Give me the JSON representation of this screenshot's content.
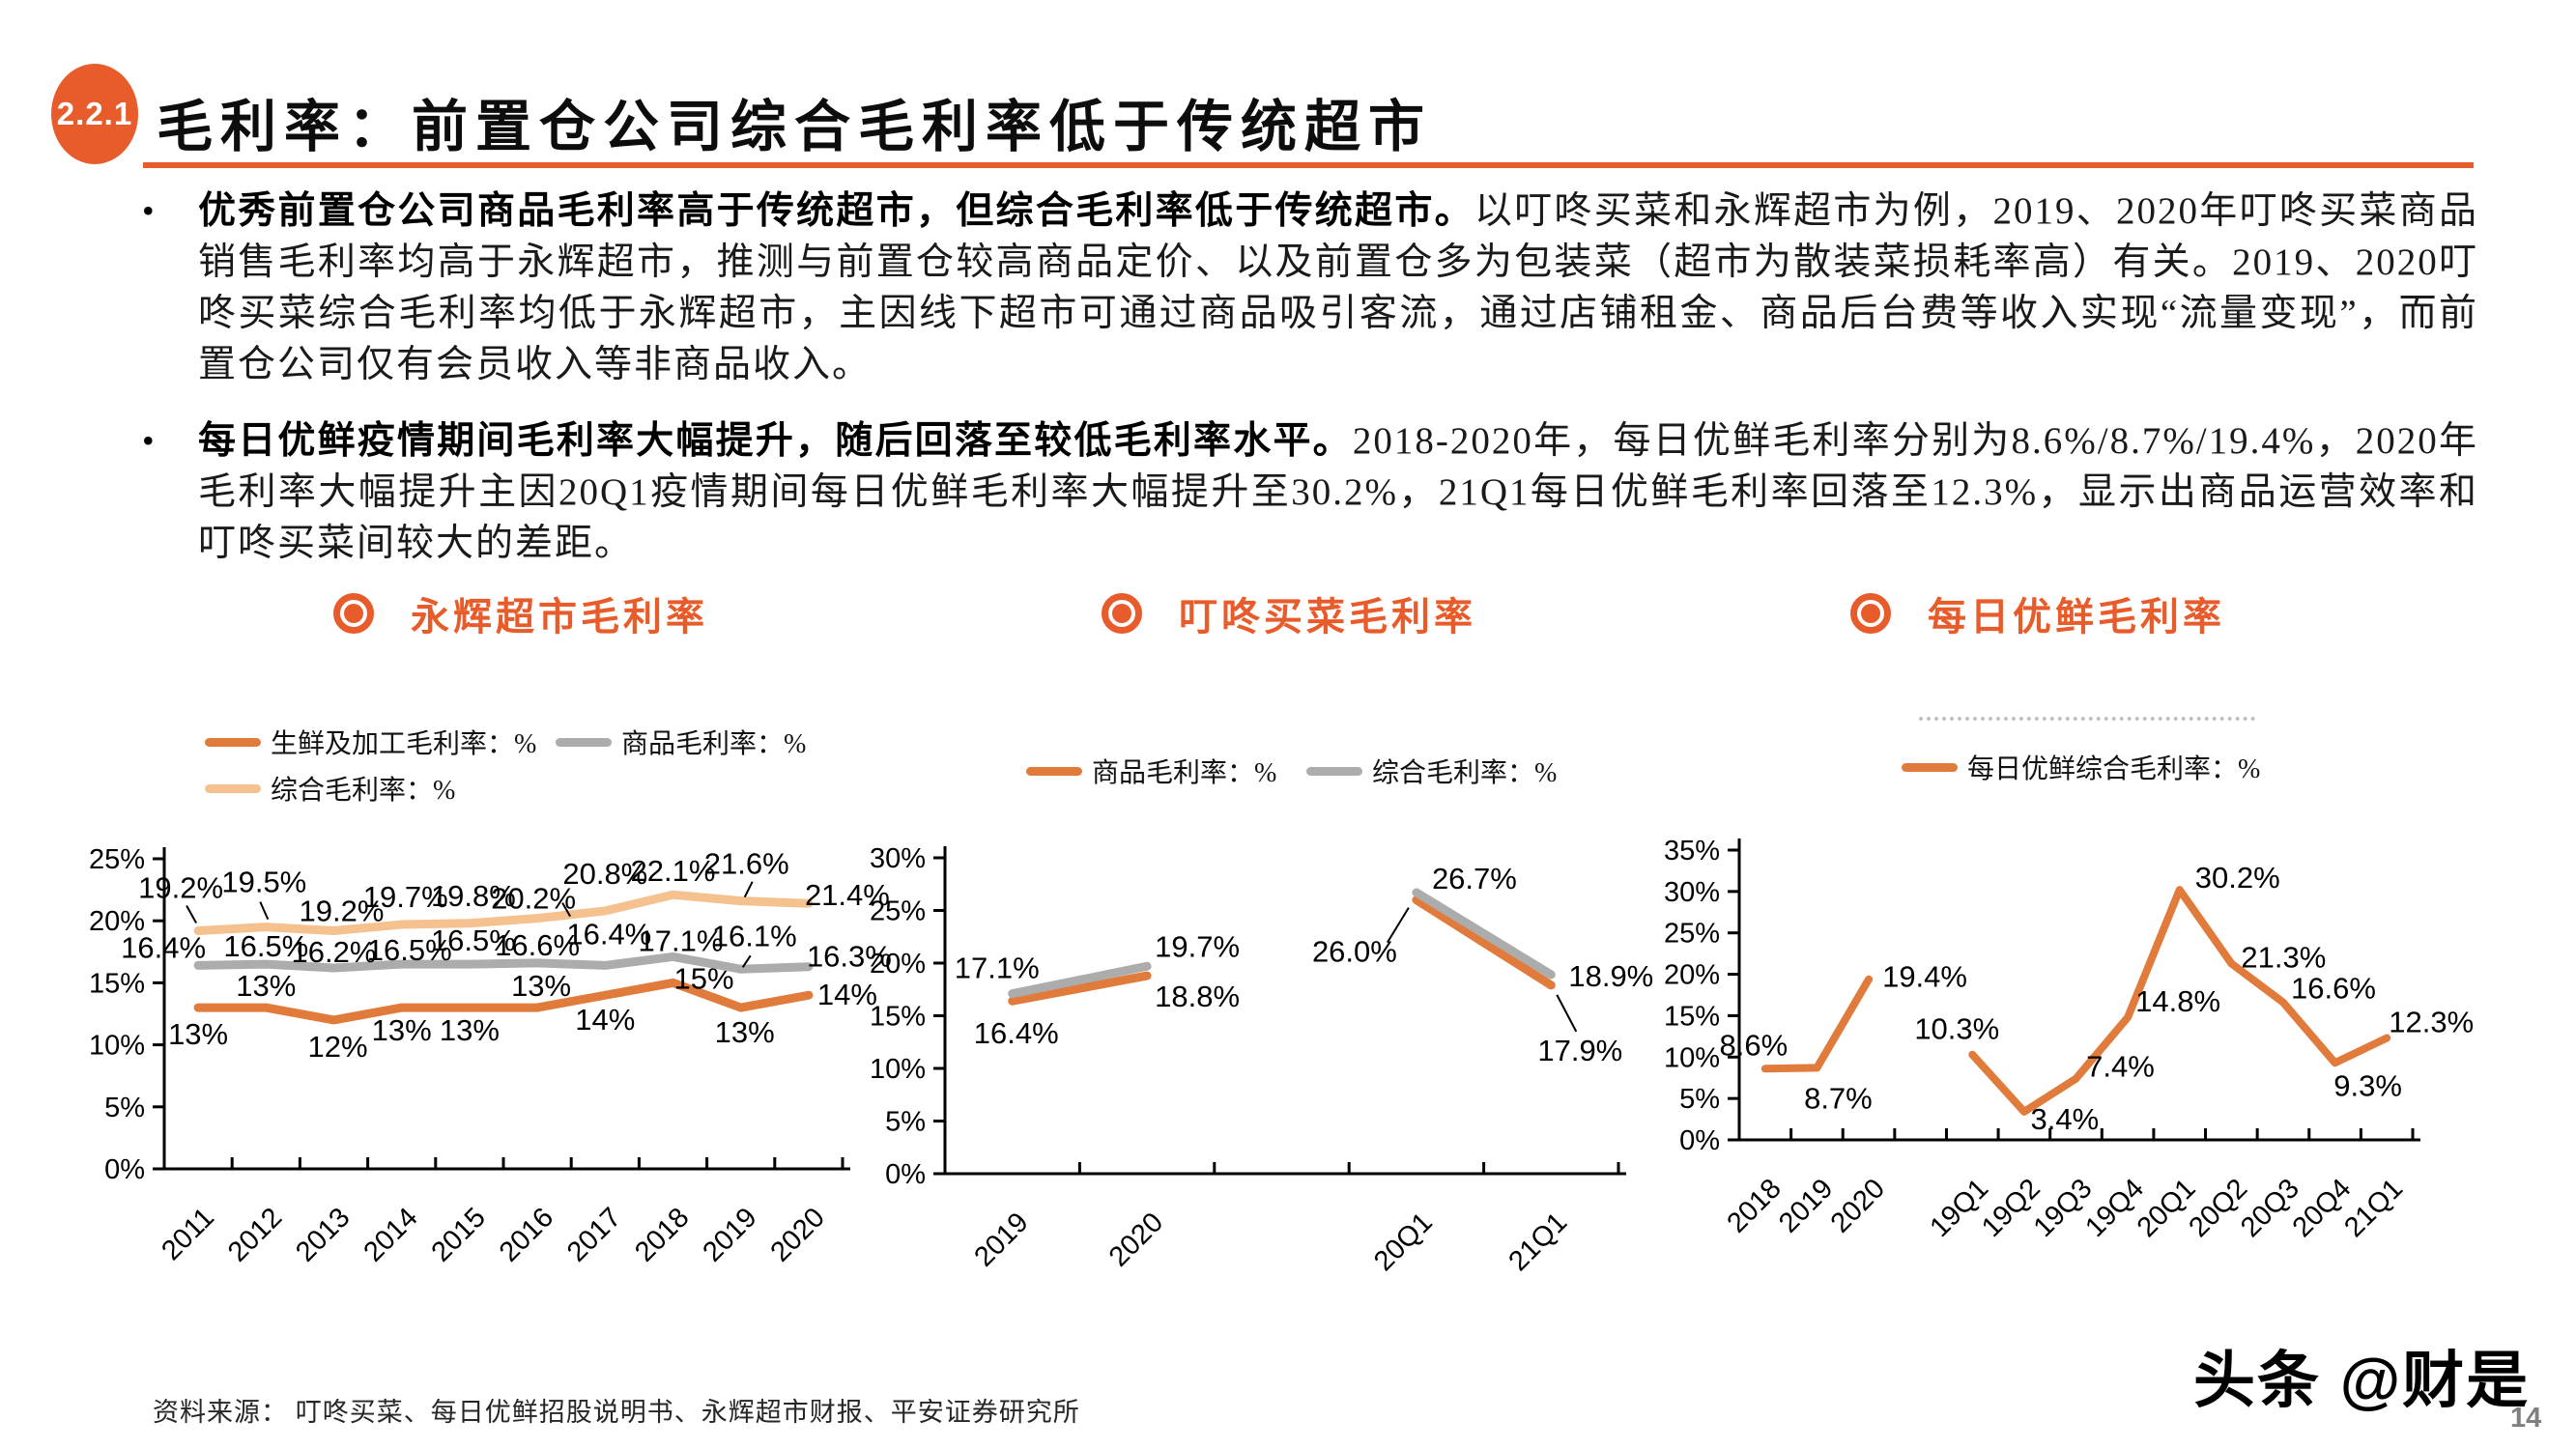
{
  "page": {
    "badge": "2.2.1",
    "title": "毛利率：前置仓公司综合毛利率低于传统超市",
    "accent_color": "#E85C2B",
    "source": "资料来源： 叮咚买菜、每日优鲜招股说明书、永辉超市财报、平安证券研究所",
    "watermark": "头条 @财是",
    "page_number": "14"
  },
  "bullets": [
    {
      "bold": "优秀前置仓公司商品毛利率高于传统超市，但综合毛利率低于传统超市。",
      "rest": "以叮咚买菜和永辉超市为例，2019、2020年叮咚买菜商品销售毛利率均高于永辉超市，推测与前置仓较高商品定价、以及前置仓多为包装菜（超市为散装菜损耗率高）有关。2019、2020叮咚买菜综合毛利率均低于永辉超市，主因线下超市可通过商品吸引客流，通过店铺租金、商品后台费等收入实现“流量变现”，而前置仓公司仅有会员收入等非商品收入。"
    },
    {
      "bold": "每日优鲜疫情期间毛利率大幅提升，随后回落至较低毛利率水平。",
      "rest": "2018-2020年，每日优鲜毛利率分别为8.6%/8.7%/19.4%，2020年毛利率大幅提升主因20Q1疫情期间每日优鲜毛利率大幅提升至30.2%，21Q1每日优鲜毛利率回落至12.3%，显示出商品运营效率和叮咚买菜间较大的差距。"
    }
  ],
  "chart_data": [
    {
      "type": "line",
      "title": "永辉超市毛利率",
      "categories": [
        "2011",
        "2012",
        "2013",
        "2014",
        "2015",
        "2016",
        "2017",
        "2018",
        "2019",
        "2020"
      ],
      "ylim": [
        0,
        25
      ],
      "yticks": [
        "0%",
        "5%",
        "10%",
        "15%",
        "20%",
        "25%"
      ],
      "grid": false,
      "legend_position": "top",
      "series": [
        {
          "name": "生鲜及加工毛利率：%",
          "color": "#E07B3C",
          "values": [
            13,
            13,
            12,
            13,
            13,
            13,
            14,
            15,
            13,
            14
          ],
          "labels": [
            "13%",
            "13%",
            "12%",
            "13%",
            "13%",
            "13%",
            "14%",
            "15%",
            "13%",
            "14%"
          ]
        },
        {
          "name": "商品毛利率：%",
          "color": "#ACACAC",
          "values": [
            16.4,
            16.5,
            16.2,
            16.5,
            16.5,
            16.6,
            16.4,
            17.1,
            16.1,
            16.3
          ],
          "labels": [
            "16.4%",
            "16.5%",
            "16.2%",
            "16.5%",
            "16.5%",
            "16.6%",
            "16.4%",
            "17.1%",
            "16.1%",
            "16.3%"
          ]
        },
        {
          "name": "综合毛利率：%",
          "color": "#F5C18E",
          "values": [
            19.2,
            19.5,
            19.2,
            19.7,
            19.8,
            20.2,
            20.8,
            22.1,
            21.6,
            21.4
          ],
          "labels": [
            "19.2%",
            "19.5%",
            "19.2%",
            "19.7%",
            "19.8%",
            "20.2%",
            "20.8%",
            "22.1%",
            "21.6%",
            "21.4%"
          ]
        }
      ]
    },
    {
      "type": "line",
      "title": "叮咚买菜毛利率",
      "categories": [
        "2019",
        "2020",
        "",
        "20Q1",
        "21Q1"
      ],
      "ylim": [
        0,
        30
      ],
      "yticks": [
        "0%",
        "5%",
        "10%",
        "15%",
        "20%",
        "25%",
        "30%"
      ],
      "grid": false,
      "legend_position": "top",
      "series": [
        {
          "name": "商品毛利率：%",
          "color": "#E07B3C",
          "values": [
            16.4,
            18.8,
            null,
            26.0,
            17.9
          ],
          "labels": [
            "16.4%",
            "18.8%",
            "",
            "26.0%",
            "17.9%"
          ]
        },
        {
          "name": "综合毛利率：%",
          "color": "#ACACAC",
          "values": [
            17.1,
            19.7,
            null,
            26.7,
            18.9
          ],
          "labels": [
            "17.1%",
            "19.7%",
            "",
            "26.7%",
            "18.9%"
          ]
        }
      ]
    },
    {
      "type": "line",
      "title": "每日优鲜毛利率",
      "categories": [
        "2018",
        "2019",
        "2020",
        "",
        "19Q1",
        "19Q2",
        "19Q3",
        "19Q4",
        "20Q1",
        "20Q2",
        "20Q3",
        "20Q4",
        "21Q1"
      ],
      "ylim": [
        0,
        35
      ],
      "yticks": [
        "0%",
        "5%",
        "10%",
        "15%",
        "20%",
        "25%",
        "30%",
        "35%"
      ],
      "grid": false,
      "legend_position": "top",
      "series": [
        {
          "name": "每日优鲜综合毛利率：%",
          "color": "#E07B3C",
          "values": [
            8.6,
            8.7,
            19.4,
            null,
            10.3,
            3.4,
            7.4,
            14.8,
            30.2,
            21.3,
            16.6,
            9.3,
            12.3
          ],
          "labels": [
            "8.6%",
            "8.7%",
            "19.4%",
            "",
            "10.3%",
            "3.4%",
            "7.4%",
            "14.8%",
            "30.2%",
            "21.3%",
            "16.6%",
            "9.3%",
            "12.3%"
          ]
        }
      ]
    }
  ]
}
